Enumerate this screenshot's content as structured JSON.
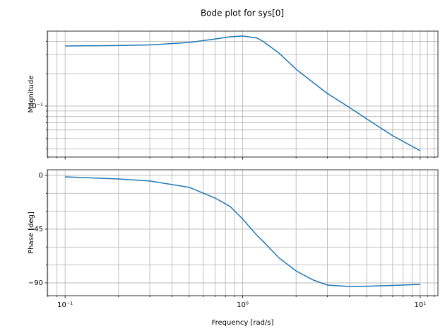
{
  "title": "Bode plot for sys[0]",
  "chart_data": [
    {
      "type": "line",
      "ylabel": "Magnitude",
      "xscale": "log",
      "yscale": "log",
      "grid": true,
      "xlim": [
        0.0794,
        12.59
      ],
      "ylim": [
        0.0336,
        0.497
      ],
      "xticks": [
        0.1,
        1,
        10
      ],
      "xminor_ticks": [
        0.08,
        0.09,
        0.2,
        0.3,
        0.4,
        0.5,
        0.6,
        0.7,
        0.8,
        0.9,
        2,
        3,
        4,
        5,
        6,
        7,
        8,
        9,
        11,
        12
      ],
      "yticks": [
        {
          "value": 0.1,
          "label": "10⁻¹"
        }
      ],
      "yminor_ticks": [
        0.04,
        0.05,
        0.06,
        0.07,
        0.08,
        0.09,
        0.2,
        0.3,
        0.4
      ],
      "x": [
        0.1,
        0.2,
        0.3,
        0.5,
        0.7,
        0.85,
        1,
        1.2,
        1.3,
        1.6,
        2,
        2.5,
        3,
        4,
        5,
        7,
        10
      ],
      "series": [
        {
          "color": "#1f77b4",
          "values": [
            0.362,
            0.365,
            0.37,
            0.39,
            0.42,
            0.44,
            0.448,
            0.43,
            0.4,
            0.311,
            0.22,
            0.165,
            0.131,
            0.097,
            0.076,
            0.053,
            0.0385
          ]
        }
      ]
    },
    {
      "type": "line",
      "ylabel": "Phase [deg]",
      "xlabel": "Frequency [rad/s]",
      "xscale": "log",
      "yscale": "linear",
      "grid": true,
      "xlim": [
        0.0794,
        12.59
      ],
      "ylim": [
        -100.7,
        4.7
      ],
      "xticks": [
        {
          "value": 0.1,
          "label": "10⁻¹"
        },
        {
          "value": 1,
          "label": "10⁰"
        },
        {
          "value": 10,
          "label": "10¹"
        }
      ],
      "xminor_ticks": [
        0.08,
        0.09,
        0.2,
        0.3,
        0.4,
        0.5,
        0.6,
        0.7,
        0.8,
        0.9,
        2,
        3,
        4,
        5,
        6,
        7,
        8,
        9,
        11,
        12
      ],
      "yticks": [
        0,
        {
          "value": -45,
          "label": "−45"
        },
        {
          "value": -90,
          "label": "−90"
        }
      ],
      "yminor_ticks": [
        -15,
        -30,
        -60,
        -75
      ],
      "x": [
        0.1,
        0.2,
        0.3,
        0.5,
        0.7,
        0.85,
        1,
        1.2,
        1.3,
        1.6,
        2,
        2.5,
        3,
        4,
        5,
        7,
        10
      ],
      "series": [
        {
          "color": "#1f77b4",
          "values": [
            -1.2,
            -3,
            -4.7,
            -10,
            -19,
            -26,
            -36.5,
            -50,
            -55,
            -69,
            -80,
            -87.6,
            -91.8,
            -93,
            -92.8,
            -92.1,
            -91.2
          ]
        }
      ]
    }
  ]
}
